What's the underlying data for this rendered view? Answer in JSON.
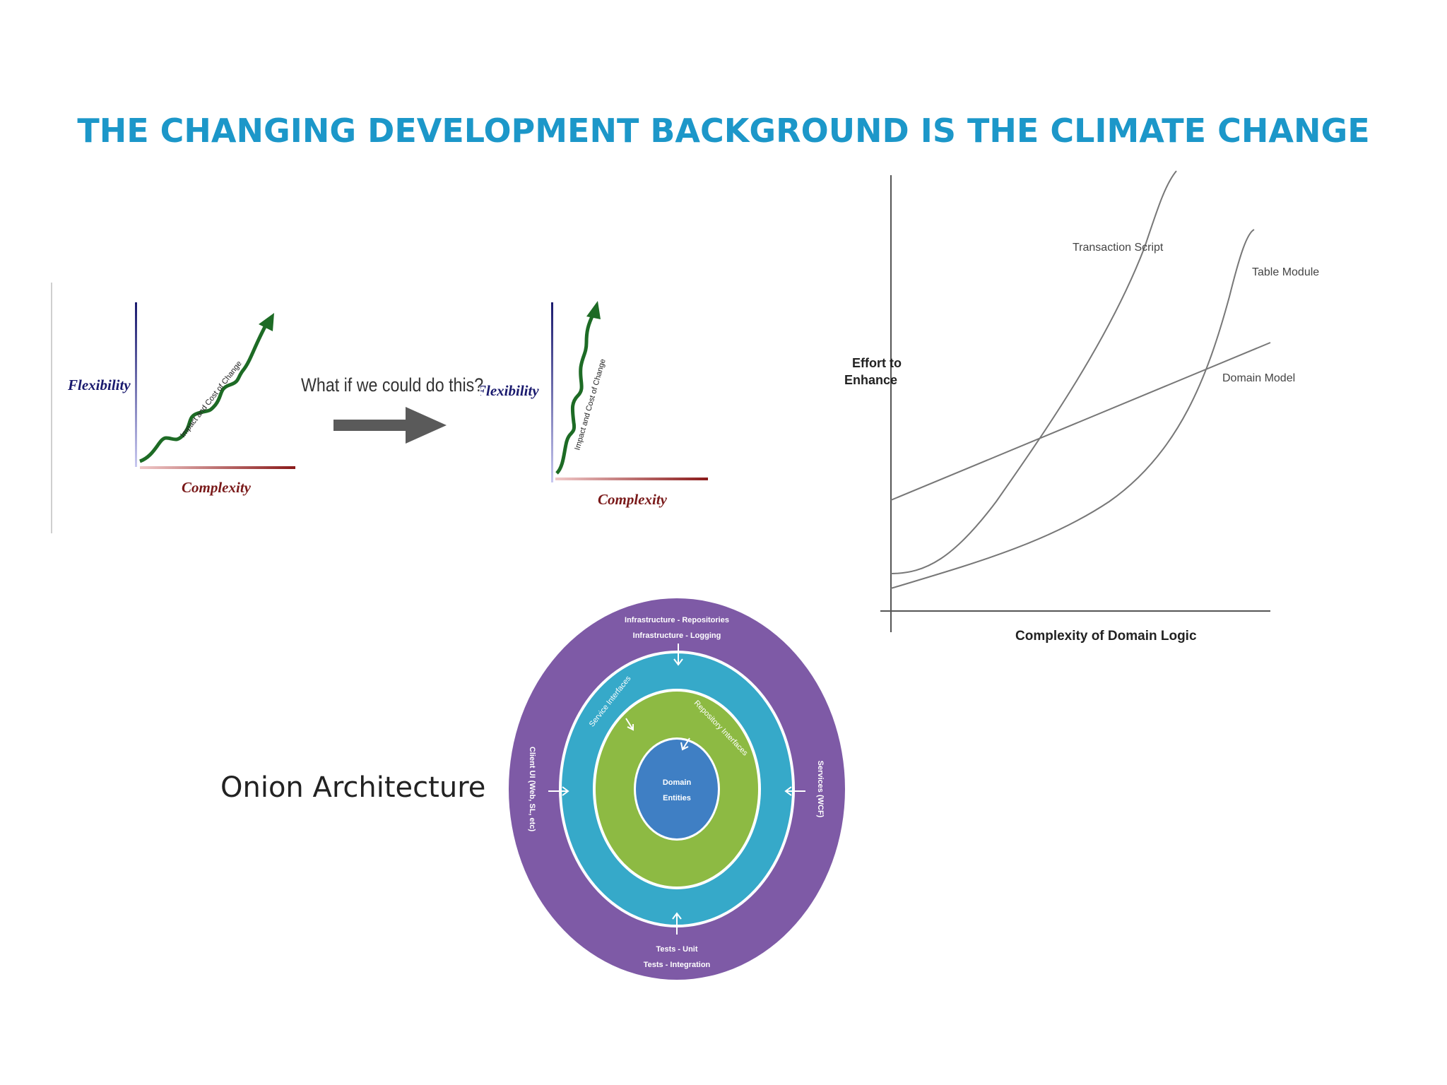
{
  "slide": {
    "title": "THE CHANGING DEVELOPMENT BACKGROUND IS THE CLIMATE CHANGE"
  },
  "left_graph": {
    "y_label": "Flexibility",
    "x_label": "Complexity",
    "curve_label": "Impact and Cost of Change"
  },
  "transition": {
    "question": "What if we could do this?"
  },
  "right_graph": {
    "y_label": "Flexibility",
    "x_label": "Complexity",
    "curve_label": "Impact and Cost of Change"
  },
  "effort_chart": {
    "y_label_line1": "Effort to",
    "y_label_line2": "Enhance",
    "x_label": "Complexity of Domain Logic",
    "series": {
      "transaction_script": "Transaction Script",
      "table_module": "Table Module",
      "domain_model": "Domain Model"
    }
  },
  "onion": {
    "label": "Onion Architecture",
    "outer_top_1": "Infrastructure - Repositories",
    "outer_top_2": "Infrastructure - Logging",
    "outer_left": "Client UI (Web, SL, etc)",
    "outer_right": "Services (WCF)",
    "outer_bottom_1": "Tests - Unit",
    "outer_bottom_2": "Tests - Integration",
    "service_interfaces": "Service Interfaces",
    "repository_interfaces": "Repository Interfaces",
    "core_1": "Domain",
    "core_2": "Entities",
    "colors": {
      "outer": "#7e5aa6",
      "service": "#36a9c9",
      "repository": "#8dba43",
      "core": "#3f7fc4",
      "title": "#1c97c9"
    }
  }
}
